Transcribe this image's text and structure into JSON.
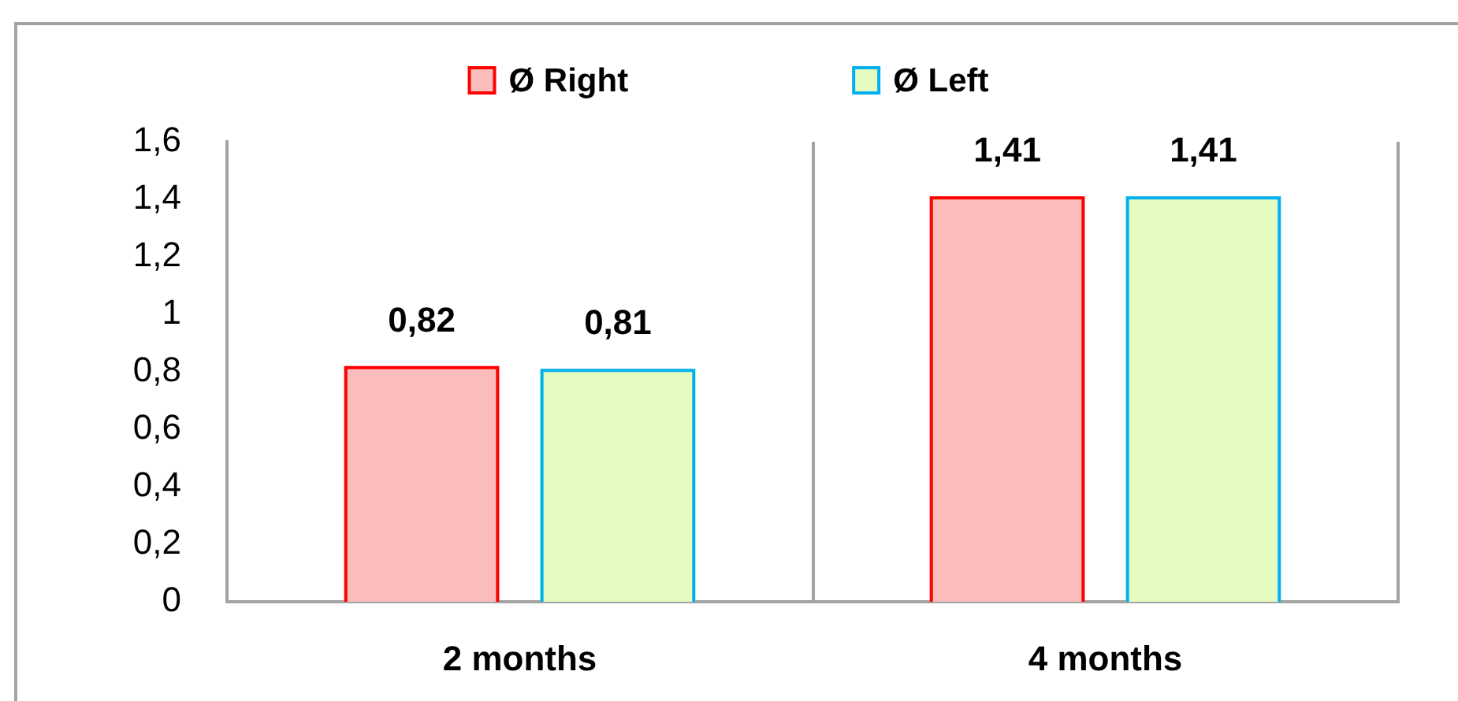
{
  "chart_data": {
    "type": "bar",
    "categories": [
      "2 months",
      "4 months"
    ],
    "series": [
      {
        "name": "Ø Right",
        "color": "#fbbcbc",
        "values": [
          0.82,
          1.41
        ],
        "value_labels": [
          "0,82",
          "1,41"
        ]
      },
      {
        "name": "Ø Left",
        "color": "#e6fbc0",
        "values": [
          0.81,
          1.41
        ],
        "value_labels": [
          "0,81",
          "1,41"
        ]
      }
    ],
    "ylim": [
      0,
      1.6
    ],
    "yticks": [
      0,
      {
        "value": 0.2,
        "label": "0,2"
      },
      {
        "value": 0.4,
        "label": "0,4"
      },
      {
        "value": 0.6,
        "label": "0,6"
      },
      {
        "value": 0.8,
        "label": "0,8"
      },
      1,
      {
        "value": 1.2,
        "label": "1,2"
      },
      {
        "value": 1.4,
        "label": "1,4"
      },
      {
        "value": 1.6,
        "label": "1,6"
      }
    ],
    "grid": "x",
    "legend": "top"
  }
}
